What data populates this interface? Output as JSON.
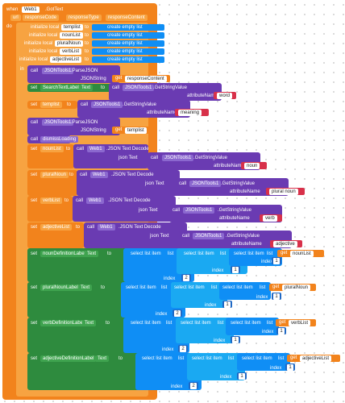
{
  "event": {
    "when": "when",
    "component": "Web1",
    "event_name": ".GotText",
    "params": [
      "url",
      "responseCode",
      "responseType",
      "responseContent"
    ],
    "do": "do"
  },
  "locals": {
    "init_label": "initialize local",
    "to_label": "to",
    "create_label": "create empty list",
    "names": [
      "templist",
      "nounList",
      "pluralNoun",
      "verbList",
      "adjectiveList"
    ]
  },
  "in_label": "in",
  "call_label": "call",
  "set_label": "set",
  "get_label": "get",
  "to_word": "to",
  "text_word": "Text",
  "blocks": {
    "jsontools": "JSONTools1",
    "parsejson": ".ParseJSON",
    "jsonstring": "JSONString",
    "response_content": "responseContent",
    "search_label": "SearchTextLabel",
    "text_prop": "Text",
    "get_string_value": ".GetStringValue",
    "attribute_name": "attributeName",
    "word": "word",
    "templist_global": "templist",
    "meaning": "meaning",
    "templist_get": "templist",
    "dismiss": "dismissLoading",
    "web1": "Web1",
    "json_decode": ".JSON Text Decode",
    "json_text": "json Text",
    "noun": "noun",
    "plural_noun": "plural noun",
    "verb": "verb",
    "adjective": "adjective",
    "select_item": "select list item",
    "list_word": "list",
    "index_word": "index",
    "noun_def_label": "nounDefinitionLabel",
    "plural_noun_label": "pluralNounLabel",
    "verb_def_label": "verbDefinitionLabel",
    "adjective_def_label": "adjectiveDefinitionLabel",
    "get_noun_list": "nounList",
    "get_plural_noun": "pluralNoun",
    "get_verb_list": "verbList",
    "get_adjective_list": "adjectiveList",
    "one": "1",
    "two": "2"
  }
}
